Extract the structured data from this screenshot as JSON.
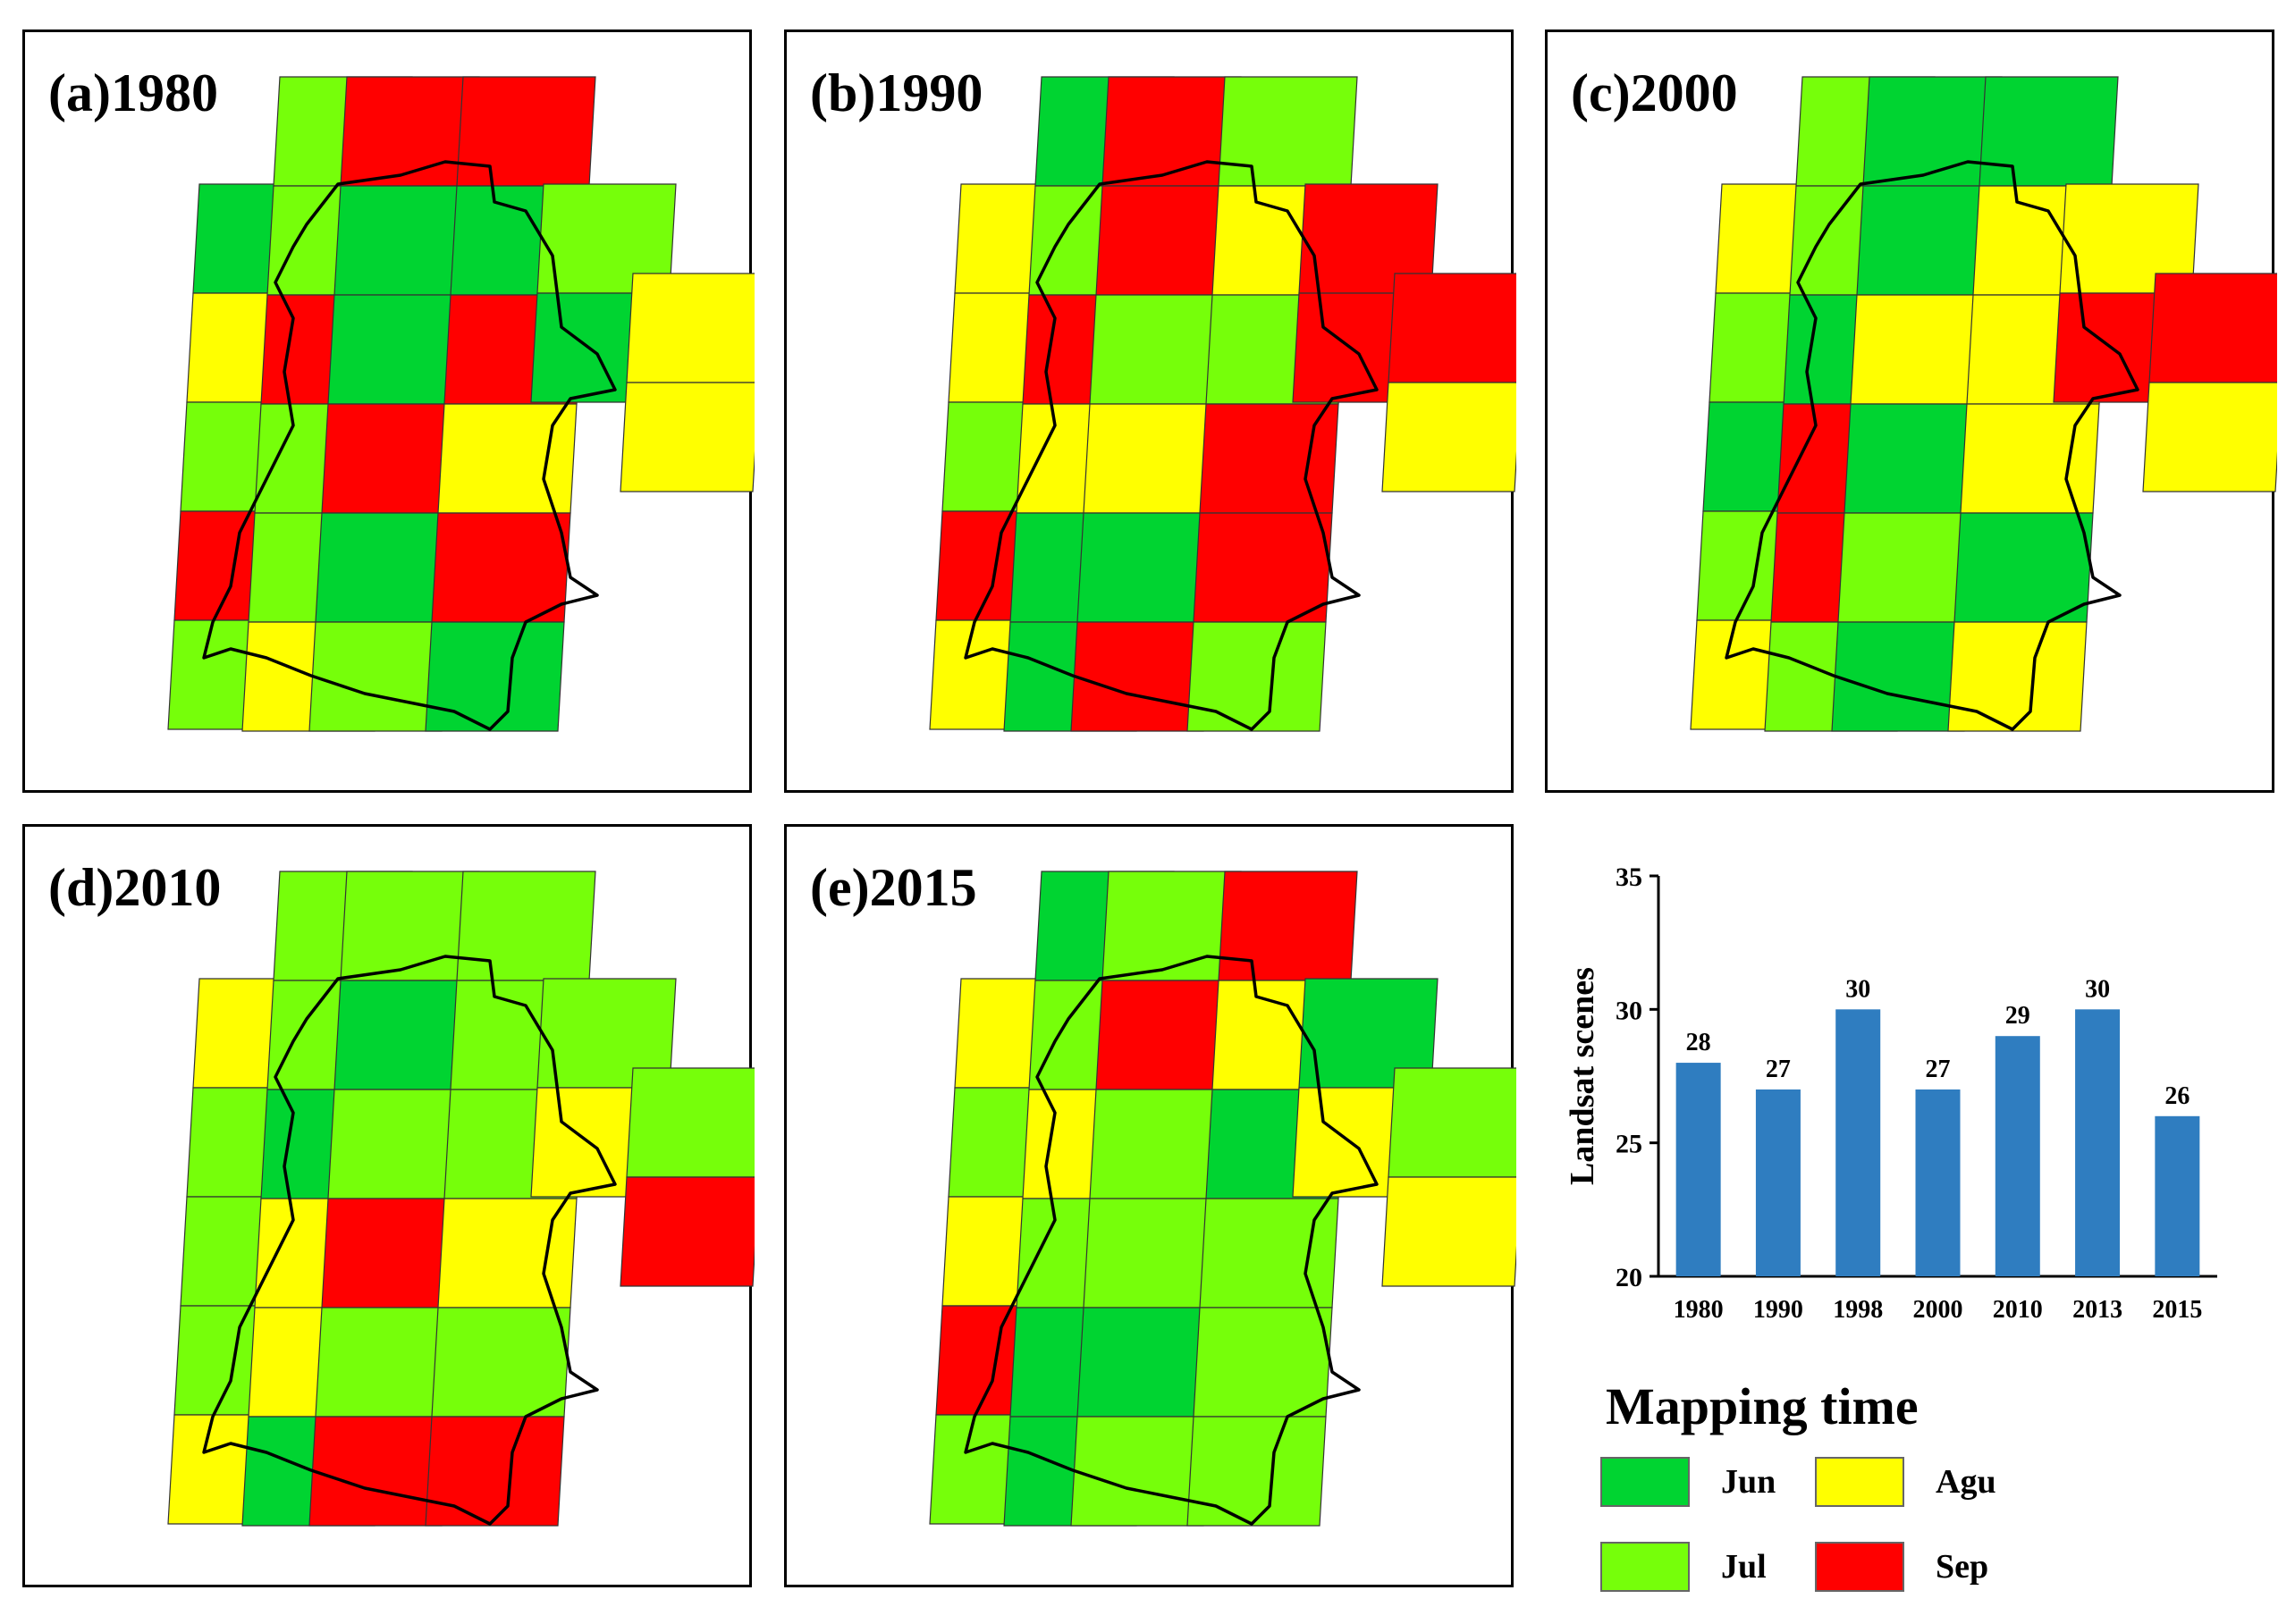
{
  "colors": {
    "Jun": "#00d431",
    "Jul": "#76ff0a",
    "Agu": "#ffff00",
    "Sep": "#ff0000",
    "bar": "#2f7dc0"
  },
  "panels": [
    {
      "label": "(a)1980",
      "tiles": [
        "Jun",
        "Agu",
        "Jul",
        "Sep",
        "Jul",
        "Jul",
        "Jul",
        "Sep",
        "Jul",
        "Jul",
        "Agu",
        "Sep",
        "Jun",
        "Jun",
        "Sep",
        "Jun",
        "Jul",
        "Sep",
        "Jun",
        "Sep",
        "Agu",
        "Sep",
        "Jun",
        "Jul",
        "Jun",
        "Agu",
        "Agu"
      ]
    },
    {
      "label": "(b)1990",
      "tiles": [
        "Agu",
        "Agu",
        "Jul",
        "Sep",
        "Agu",
        "Jun",
        "Jul",
        "Sep",
        "Agu",
        "Jun",
        "Jun",
        "Sep",
        "Sep",
        "Jul",
        "Agu",
        "Jun",
        "Sep",
        "Jul",
        "Agu",
        "Jul",
        "Sep",
        "Sep",
        "Jul",
        "Sep",
        "Sep",
        "Sep",
        "Agu"
      ]
    },
    {
      "label": "(c)2000",
      "tiles": [
        "Agu",
        "Jul",
        "Jun",
        "Jul",
        "Agu",
        "Jul",
        "Jul",
        "Jun",
        "Sep",
        "Sep",
        "Jul",
        "Jun",
        "Jun",
        "Agu",
        "Jun",
        "Jul",
        "Jun",
        "Jun",
        "Agu",
        "Agu",
        "Agu",
        "Jun",
        "Agu",
        "Agu",
        "Sep",
        "Sep",
        "Agu"
      ]
    },
    {
      "label": "(d)2010",
      "tiles": [
        "Agu",
        "Jul",
        "Jul",
        "Jul",
        "Agu",
        "Jul",
        "Jul",
        "Jun",
        "Agu",
        "Agu",
        "Jun",
        "Jul",
        "Jun",
        "Jul",
        "Sep",
        "Jul",
        "Sep",
        "Jul",
        "Jul",
        "Jul",
        "Agu",
        "Jul",
        "Sep",
        "Jul",
        "Agu",
        "Jul",
        "Sep"
      ]
    },
    {
      "label": "(e)2015",
      "tiles": [
        "Agu",
        "Jul",
        "Agu",
        "Sep",
        "Jul",
        "Jun",
        "Jul",
        "Agu",
        "Jul",
        "Jun",
        "Jun",
        "Jul",
        "Sep",
        "Jul",
        "Jul",
        "Jun",
        "Jul",
        "Sep",
        "Agu",
        "Jun",
        "Jul",
        "Jul",
        "Jul",
        "Jun",
        "Agu",
        "Jul",
        "Agu"
      ]
    }
  ],
  "chart_data": {
    "type": "bar",
    "title": "",
    "xlabel": "",
    "ylabel": "Landsat scenes",
    "categories": [
      "1980",
      "1990",
      "1998",
      "2000",
      "2010",
      "2013",
      "2015"
    ],
    "values": [
      28,
      27,
      30,
      27,
      29,
      30,
      26
    ],
    "data_labels": [
      "28",
      "27",
      "30",
      "27",
      "29",
      "30",
      "26"
    ],
    "ylim": [
      20,
      35
    ],
    "yticks": [
      20,
      25,
      30,
      35
    ],
    "ytick_labels": [
      "20",
      "25",
      "30",
      "35"
    ],
    "grid": false,
    "legend": "none"
  },
  "legend": {
    "title": "Mapping time",
    "items": [
      {
        "label": "Jun",
        "color": "#00d431"
      },
      {
        "label": "Agu",
        "color": "#ffff00"
      },
      {
        "label": "Jul",
        "color": "#76ff0a"
      },
      {
        "label": "Sep",
        "color": "#ff0000"
      }
    ]
  }
}
